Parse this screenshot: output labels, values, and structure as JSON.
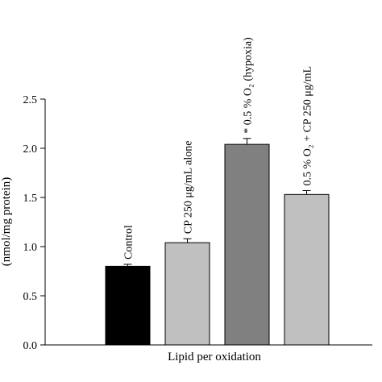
{
  "chart_data": {
    "type": "bar",
    "title": "",
    "xlabel": "Lipid per oxidation",
    "ylabel": "(nmol/mg protein)",
    "ylim": [
      0,
      2.5
    ],
    "yticks": [
      "0.0",
      "0.5",
      "1.0",
      "1.5",
      "2.0",
      "2.5"
    ],
    "grid": false,
    "categories": [
      "Control",
      "CP 250 μg/mL alone",
      "* 0.5 % O₂ (hypoxia)",
      "0.5 % O₂ + CP 250 μg/mL"
    ],
    "values": [
      0.8,
      1.04,
      2.04,
      1.53
    ],
    "errors": [
      0.02,
      0.04,
      0.06,
      0.04
    ],
    "colors": [
      "#000000",
      "#c0c0c0",
      "#808080",
      "#c0c0c0"
    ]
  }
}
